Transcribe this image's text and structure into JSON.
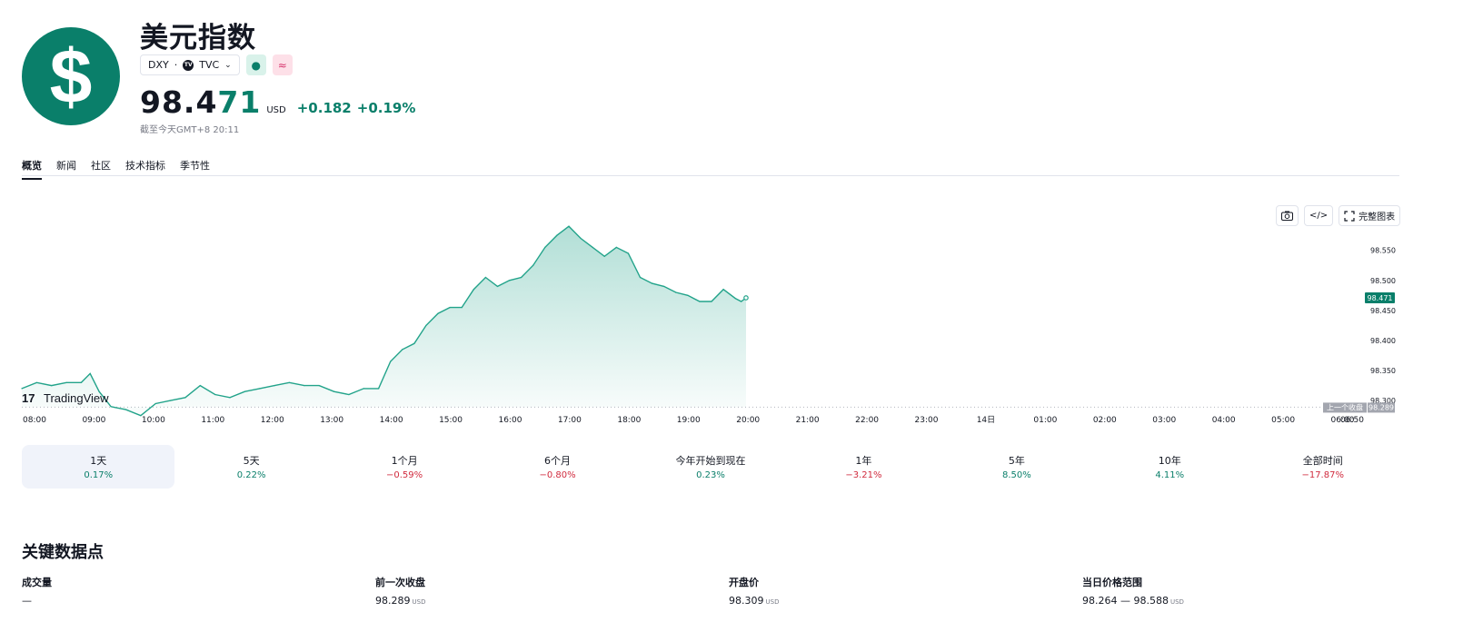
{
  "header": {
    "logo_glyph": "$",
    "title": "美元指数",
    "symbol": "DXY",
    "exchange": "TVC",
    "tv_mark": "TV",
    "price_main": "98.4",
    "price_highlight": "71",
    "currency": "USD",
    "change_abs": "+0.182",
    "change_pct": "+0.19%",
    "as_of": "截至今天GMT+8 20:11",
    "icons": [
      "dollar-icon",
      "tradingview-icon",
      "chevron-down-icon",
      "market-open-icon",
      "wave-icon"
    ]
  },
  "tabs": [
    {
      "label": "概览",
      "active": true
    },
    {
      "label": "新闻",
      "active": false
    },
    {
      "label": "社区",
      "active": false
    },
    {
      "label": "技术指标",
      "active": false
    },
    {
      "label": "季节性",
      "active": false
    }
  ],
  "chart_tools": {
    "fullchart_label": "完整图表",
    "icons": [
      "camera-icon",
      "code-icon",
      "fullscreen-icon"
    ]
  },
  "chart_data": {
    "type": "area",
    "watermark": "TradingView",
    "x_ticks": [
      "08:00",
      "09:00",
      "10:00",
      "11:00",
      "12:00",
      "13:00",
      "14:00",
      "15:00",
      "16:00",
      "17:00",
      "18:00",
      "19:00",
      "20:00",
      "21:00",
      "22:00",
      "23:00",
      "14日",
      "01:00",
      "02:00",
      "03:00",
      "04:00",
      "05:00",
      "06:00",
      "06:50"
    ],
    "y_ticks": [
      "98.550",
      "98.500",
      "98.450",
      "98.400",
      "98.350",
      "98.300"
    ],
    "ylim": [
      98.27,
      98.61
    ],
    "last_price_label": "98.471",
    "prev_close_label": "上一个收盘",
    "prev_close_value": "98.289",
    "prev_close": 98.289,
    "series": {
      "x_hours": [
        8.0,
        8.25,
        8.5,
        8.75,
        9.0,
        9.15,
        9.3,
        9.5,
        9.75,
        10.0,
        10.25,
        10.5,
        10.75,
        11.0,
        11.25,
        11.5,
        11.75,
        12.0,
        12.25,
        12.5,
        12.75,
        13.0,
        13.25,
        13.5,
        13.75,
        14.0,
        14.2,
        14.4,
        14.6,
        14.8,
        15.0,
        15.2,
        15.4,
        15.6,
        15.8,
        16.0,
        16.2,
        16.4,
        16.6,
        16.8,
        17.0,
        17.2,
        17.4,
        17.6,
        17.8,
        18.0,
        18.2,
        18.4,
        18.6,
        18.8,
        19.0,
        19.2,
        19.4,
        19.6,
        19.8,
        20.0,
        20.1,
        20.18
      ],
      "values": [
        98.32,
        98.33,
        98.325,
        98.33,
        98.33,
        98.345,
        98.315,
        98.29,
        98.285,
        98.275,
        98.295,
        98.3,
        98.305,
        98.325,
        98.31,
        98.305,
        98.315,
        98.32,
        98.325,
        98.33,
        98.325,
        98.325,
        98.315,
        98.31,
        98.32,
        98.32,
        98.365,
        98.385,
        98.395,
        98.425,
        98.445,
        98.455,
        98.455,
        98.485,
        98.505,
        98.49,
        98.5,
        98.505,
        98.525,
        98.555,
        98.575,
        98.59,
        98.57,
        98.555,
        98.54,
        98.555,
        98.545,
        98.505,
        98.495,
        98.49,
        98.48,
        98.475,
        98.465,
        98.465,
        98.485,
        98.47,
        98.465,
        98.471
      ]
    }
  },
  "periods": [
    {
      "label": "1天",
      "value": "0.17%",
      "dir": "pos",
      "active": true
    },
    {
      "label": "5天",
      "value": "0.22%",
      "dir": "pos",
      "active": false
    },
    {
      "label": "1个月",
      "value": "−0.59%",
      "dir": "neg",
      "active": false
    },
    {
      "label": "6个月",
      "value": "−0.80%",
      "dir": "neg",
      "active": false
    },
    {
      "label": "今年开始到现在",
      "value": "0.23%",
      "dir": "pos",
      "active": false
    },
    {
      "label": "1年",
      "value": "−3.21%",
      "dir": "neg",
      "active": false
    },
    {
      "label": "5年",
      "value": "8.50%",
      "dir": "pos",
      "active": false
    },
    {
      "label": "10年",
      "value": "4.11%",
      "dir": "pos",
      "active": false
    },
    {
      "label": "全部时间",
      "value": "−17.87%",
      "dir": "neg",
      "active": false
    }
  ],
  "key_data": {
    "title": "关键数据点",
    "items": [
      {
        "label": "成交量",
        "value": "—",
        "unit": ""
      },
      {
        "label": "前一次收盘",
        "value": "98.289",
        "unit": "USD"
      },
      {
        "label": "开盘价",
        "value": "98.309",
        "unit": "USD"
      },
      {
        "label": "当日价格范围",
        "value": "98.264 — 98.588",
        "unit": "USD"
      }
    ]
  },
  "colors": {
    "accent": "#0a7f6a",
    "negative": "#d12c3f",
    "line": "#22a38a"
  }
}
